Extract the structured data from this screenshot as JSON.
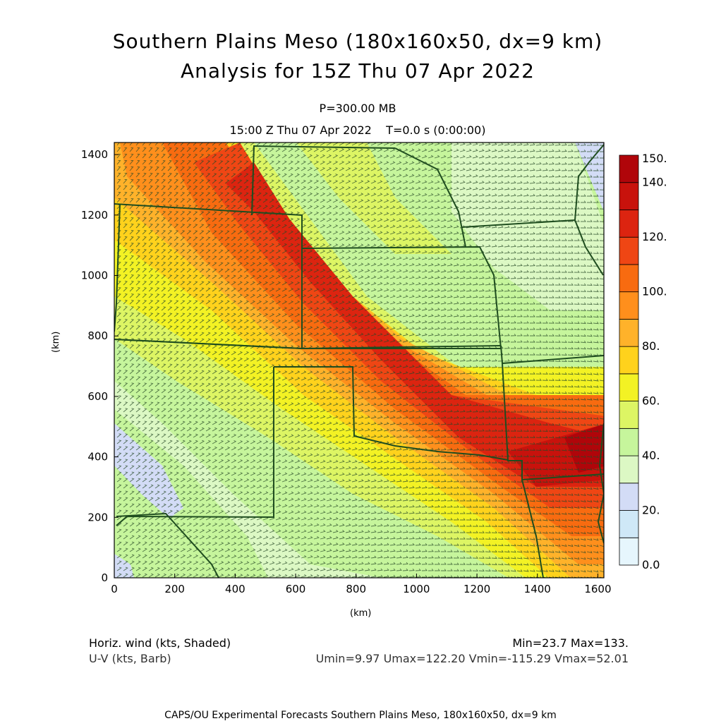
{
  "title": {
    "line1": "Southern Plains Meso (180x160x50, dx=9 km)",
    "line2": "Analysis for 15Z Thu 07 Apr 2022"
  },
  "subtitle": {
    "level": "P=300.00 MB",
    "time": "15:00 Z Thu 07 Apr 2022    T=0.0 s (0:00:00)"
  },
  "axes": {
    "x_label": "(km)",
    "y_label": "(km)",
    "x_ticks": [
      "0",
      "200",
      "400",
      "600",
      "800",
      "1000",
      "1200",
      "1400",
      "1600"
    ],
    "y_ticks": [
      "0",
      "200",
      "400",
      "600",
      "800",
      "1000",
      "1200",
      "1400"
    ],
    "x_range": [
      0,
      1620
    ],
    "y_range": [
      0,
      1440
    ]
  },
  "colorbar": {
    "labels": [
      "0.0",
      "20.",
      "40.",
      "60.",
      "80.",
      "100.",
      "120.",
      "140.",
      "150."
    ],
    "colors": [
      "#e6f6fd",
      "#cfe8f7",
      "#d3dcf6",
      "#dcf8c4",
      "#c6f59c",
      "#ddf564",
      "#f3f224",
      "#ffd21c",
      "#ffb22a",
      "#ff8f1c",
      "#f86b10",
      "#ef4614",
      "#dc2410",
      "#c8120c",
      "#b0050a"
    ]
  },
  "footer": {
    "left1": "Horiz. wind (kts, Shaded)",
    "left2": "U-V (kts, Barb)",
    "right1": "Min=23.7 Max=133.",
    "right2": "Umin=9.97 Umax=122.20 Vmin=-115.29 Vmax=52.01"
  },
  "credit": "CAPS/OU Experimental Forecasts  Southern Plains Meso, 180x160x50, dx=9 km",
  "map": {
    "border_color": "#1f4d1f",
    "barb_color": "#274927"
  }
}
